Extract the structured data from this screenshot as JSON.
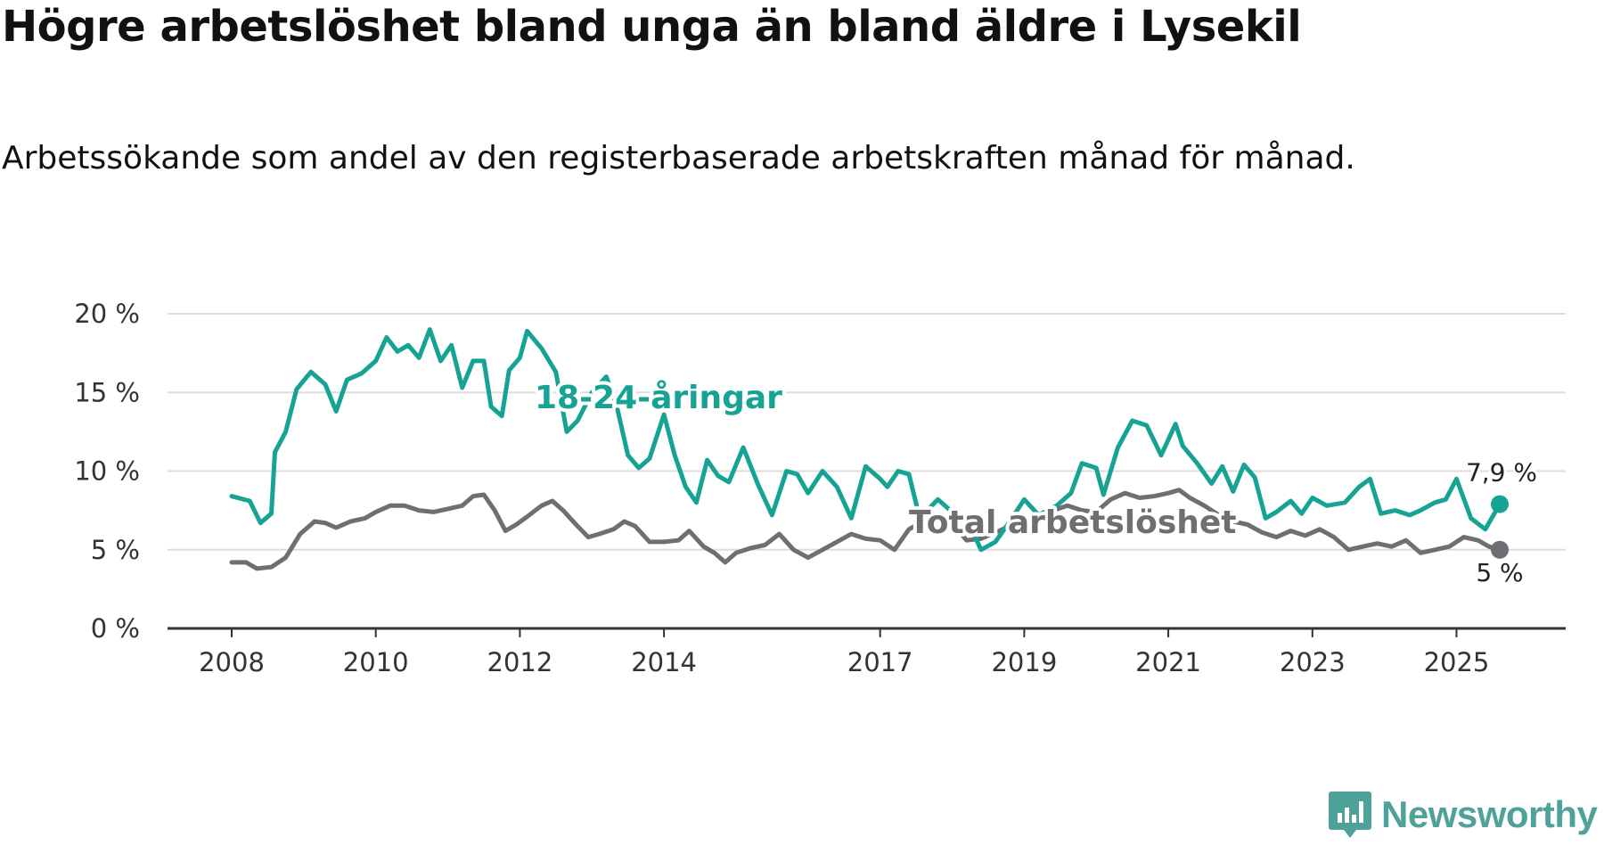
{
  "header": {
    "title": "Högre arbetslöshet bland unga än bland äldre i Lysekil",
    "subtitle": "Arbetssökande som andel av den registerbaserade arbetskraften månad för månad."
  },
  "brand": {
    "name": "Newsworthy",
    "icon": "newsworthy-logo-icon",
    "color": "#4fa29a"
  },
  "colors": {
    "youth": "#16a394",
    "total": "#6f6e72",
    "grid": "#dddddd",
    "axis": "#333333"
  },
  "chart_data": {
    "type": "line",
    "title": "Högre arbetslöshet bland unga än bland äldre i Lysekil",
    "xlabel": "",
    "ylabel": "",
    "xlim": [
      2007.9,
      2026.6
    ],
    "ylim": [
      0,
      20
    ],
    "y_ticks": [
      0,
      5,
      10,
      15,
      20
    ],
    "y_tick_labels": [
      "0 %",
      "5 %",
      "10 %",
      "15 %",
      "20 %"
    ],
    "x_ticks": [
      2008,
      2010,
      2012,
      2014,
      2017,
      2019,
      2021,
      2023,
      2025
    ],
    "x_tick_labels": [
      "2008",
      "2010",
      "2012",
      "2014",
      "2017",
      "2019",
      "2021",
      "2023",
      "2025"
    ],
    "grid": true,
    "series": [
      {
        "name": "18-24-åringar",
        "color": "#16a394",
        "end_label": "7,9 %",
        "end_value": 7.9,
        "points": [
          [
            2008.0,
            8.4
          ],
          [
            2008.25,
            8.1
          ],
          [
            2008.4,
            6.7
          ],
          [
            2008.55,
            7.3
          ],
          [
            2008.6,
            11.2
          ],
          [
            2008.75,
            12.5
          ],
          [
            2008.9,
            15.2
          ],
          [
            2009.1,
            16.3
          ],
          [
            2009.3,
            15.5
          ],
          [
            2009.45,
            13.8
          ],
          [
            2009.6,
            15.8
          ],
          [
            2009.8,
            16.2
          ],
          [
            2010.0,
            17.0
          ],
          [
            2010.15,
            18.5
          ],
          [
            2010.3,
            17.6
          ],
          [
            2010.45,
            18.0
          ],
          [
            2010.6,
            17.2
          ],
          [
            2010.75,
            19.0
          ],
          [
            2010.9,
            17.0
          ],
          [
            2011.05,
            18.0
          ],
          [
            2011.2,
            15.3
          ],
          [
            2011.35,
            17.0
          ],
          [
            2011.5,
            17.0
          ],
          [
            2011.6,
            14.1
          ],
          [
            2011.75,
            13.5
          ],
          [
            2011.85,
            16.4
          ],
          [
            2012.0,
            17.2
          ],
          [
            2012.1,
            18.9
          ],
          [
            2012.3,
            17.8
          ],
          [
            2012.5,
            16.3
          ],
          [
            2012.65,
            12.5
          ],
          [
            2012.8,
            13.2
          ],
          [
            2013.0,
            15.0
          ],
          [
            2013.2,
            16.0
          ],
          [
            2013.35,
            14.0
          ],
          [
            2013.5,
            11.0
          ],
          [
            2013.65,
            10.2
          ],
          [
            2013.8,
            10.8
          ],
          [
            2014.0,
            13.6
          ],
          [
            2014.15,
            11.0
          ],
          [
            2014.3,
            9.0
          ],
          [
            2014.45,
            8.0
          ],
          [
            2014.6,
            10.7
          ],
          [
            2014.75,
            9.7
          ],
          [
            2014.9,
            9.3
          ],
          [
            2015.1,
            11.5
          ],
          [
            2015.3,
            9.2
          ],
          [
            2015.5,
            7.2
          ],
          [
            2015.7,
            10.0
          ],
          [
            2015.85,
            9.8
          ],
          [
            2016.0,
            8.6
          ],
          [
            2016.2,
            10.0
          ],
          [
            2016.4,
            9.0
          ],
          [
            2016.6,
            7.0
          ],
          [
            2016.8,
            10.3
          ],
          [
            2017.0,
            9.5
          ],
          [
            2017.1,
            9.0
          ],
          [
            2017.25,
            10.0
          ],
          [
            2017.4,
            9.8
          ],
          [
            2017.55,
            7.0
          ],
          [
            2017.8,
            8.2
          ],
          [
            2018.0,
            7.4
          ],
          [
            2018.2,
            7.0
          ],
          [
            2018.4,
            5.0
          ],
          [
            2018.6,
            5.5
          ],
          [
            2018.8,
            6.8
          ],
          [
            2019.0,
            8.2
          ],
          [
            2019.2,
            7.2
          ],
          [
            2019.45,
            7.8
          ],
          [
            2019.65,
            8.6
          ],
          [
            2019.8,
            10.5
          ],
          [
            2020.0,
            10.2
          ],
          [
            2020.1,
            8.5
          ],
          [
            2020.3,
            11.5
          ],
          [
            2020.5,
            13.2
          ],
          [
            2020.7,
            12.9
          ],
          [
            2020.9,
            11.0
          ],
          [
            2021.1,
            13.0
          ],
          [
            2021.2,
            11.6
          ],
          [
            2021.4,
            10.5
          ],
          [
            2021.6,
            9.2
          ],
          [
            2021.75,
            10.3
          ],
          [
            2021.9,
            8.7
          ],
          [
            2022.05,
            10.4
          ],
          [
            2022.2,
            9.6
          ],
          [
            2022.35,
            7.0
          ],
          [
            2022.5,
            7.4
          ],
          [
            2022.7,
            8.1
          ],
          [
            2022.85,
            7.3
          ],
          [
            2023.0,
            8.3
          ],
          [
            2023.2,
            7.8
          ],
          [
            2023.45,
            8.0
          ],
          [
            2023.65,
            9.0
          ],
          [
            2023.8,
            9.5
          ],
          [
            2023.95,
            7.3
          ],
          [
            2024.15,
            7.5
          ],
          [
            2024.35,
            7.2
          ],
          [
            2024.5,
            7.5
          ],
          [
            2024.7,
            8.0
          ],
          [
            2024.85,
            8.2
          ],
          [
            2025.0,
            9.5
          ],
          [
            2025.2,
            7.0
          ],
          [
            2025.4,
            6.3
          ],
          [
            2025.6,
            7.9
          ]
        ]
      },
      {
        "name": "Total arbetslöshet",
        "color": "#6f6e72",
        "end_label": "5 %",
        "end_value": 5.0,
        "points": [
          [
            2008.0,
            4.2
          ],
          [
            2008.2,
            4.2
          ],
          [
            2008.35,
            3.8
          ],
          [
            2008.55,
            3.9
          ],
          [
            2008.75,
            4.5
          ],
          [
            2008.95,
            6.0
          ],
          [
            2009.15,
            6.8
          ],
          [
            2009.3,
            6.7
          ],
          [
            2009.45,
            6.4
          ],
          [
            2009.65,
            6.8
          ],
          [
            2009.85,
            7.0
          ],
          [
            2010.0,
            7.4
          ],
          [
            2010.2,
            7.8
          ],
          [
            2010.4,
            7.8
          ],
          [
            2010.6,
            7.5
          ],
          [
            2010.8,
            7.4
          ],
          [
            2011.0,
            7.6
          ],
          [
            2011.2,
            7.8
          ],
          [
            2011.35,
            8.4
          ],
          [
            2011.5,
            8.5
          ],
          [
            2011.65,
            7.5
          ],
          [
            2011.8,
            6.2
          ],
          [
            2011.95,
            6.6
          ],
          [
            2012.1,
            7.1
          ],
          [
            2012.3,
            7.8
          ],
          [
            2012.45,
            8.1
          ],
          [
            2012.6,
            7.5
          ],
          [
            2012.8,
            6.5
          ],
          [
            2012.95,
            5.8
          ],
          [
            2013.1,
            6.0
          ],
          [
            2013.3,
            6.3
          ],
          [
            2013.45,
            6.8
          ],
          [
            2013.6,
            6.5
          ],
          [
            2013.8,
            5.5
          ],
          [
            2014.0,
            5.5
          ],
          [
            2014.2,
            5.6
          ],
          [
            2014.35,
            6.2
          ],
          [
            2014.55,
            5.2
          ],
          [
            2014.7,
            4.8
          ],
          [
            2014.85,
            4.2
          ],
          [
            2015.0,
            4.8
          ],
          [
            2015.2,
            5.1
          ],
          [
            2015.4,
            5.3
          ],
          [
            2015.6,
            6.0
          ],
          [
            2015.8,
            5.0
          ],
          [
            2016.0,
            4.5
          ],
          [
            2016.2,
            5.0
          ],
          [
            2016.4,
            5.5
          ],
          [
            2016.6,
            6.0
          ],
          [
            2016.8,
            5.7
          ],
          [
            2017.0,
            5.6
          ],
          [
            2017.2,
            5.0
          ],
          [
            2017.4,
            6.3
          ],
          [
            2017.6,
            6.8
          ],
          [
            2017.8,
            7.0
          ],
          [
            2018.0,
            6.7
          ],
          [
            2018.2,
            5.6
          ],
          [
            2018.4,
            5.7
          ],
          [
            2018.6,
            6.1
          ],
          [
            2018.8,
            6.5
          ],
          [
            2019.0,
            6.8
          ],
          [
            2019.2,
            7.2
          ],
          [
            2019.4,
            7.5
          ],
          [
            2019.6,
            7.8
          ],
          [
            2019.8,
            7.5
          ],
          [
            2020.0,
            7.4
          ],
          [
            2020.2,
            8.2
          ],
          [
            2020.4,
            8.6
          ],
          [
            2020.6,
            8.3
          ],
          [
            2020.8,
            8.4
          ],
          [
            2021.0,
            8.6
          ],
          [
            2021.15,
            8.8
          ],
          [
            2021.3,
            8.3
          ],
          [
            2021.5,
            7.8
          ],
          [
            2021.7,
            7.2
          ],
          [
            2021.9,
            6.8
          ],
          [
            2022.1,
            6.6
          ],
          [
            2022.3,
            6.1
          ],
          [
            2022.5,
            5.8
          ],
          [
            2022.7,
            6.2
          ],
          [
            2022.9,
            5.9
          ],
          [
            2023.1,
            6.3
          ],
          [
            2023.3,
            5.8
          ],
          [
            2023.5,
            5.0
          ],
          [
            2023.7,
            5.2
          ],
          [
            2023.9,
            5.4
          ],
          [
            2024.1,
            5.2
          ],
          [
            2024.3,
            5.6
          ],
          [
            2024.5,
            4.8
          ],
          [
            2024.7,
            5.0
          ],
          [
            2024.9,
            5.2
          ],
          [
            2025.1,
            5.8
          ],
          [
            2025.3,
            5.6
          ],
          [
            2025.45,
            5.2
          ],
          [
            2025.6,
            5.0
          ]
        ]
      }
    ]
  }
}
